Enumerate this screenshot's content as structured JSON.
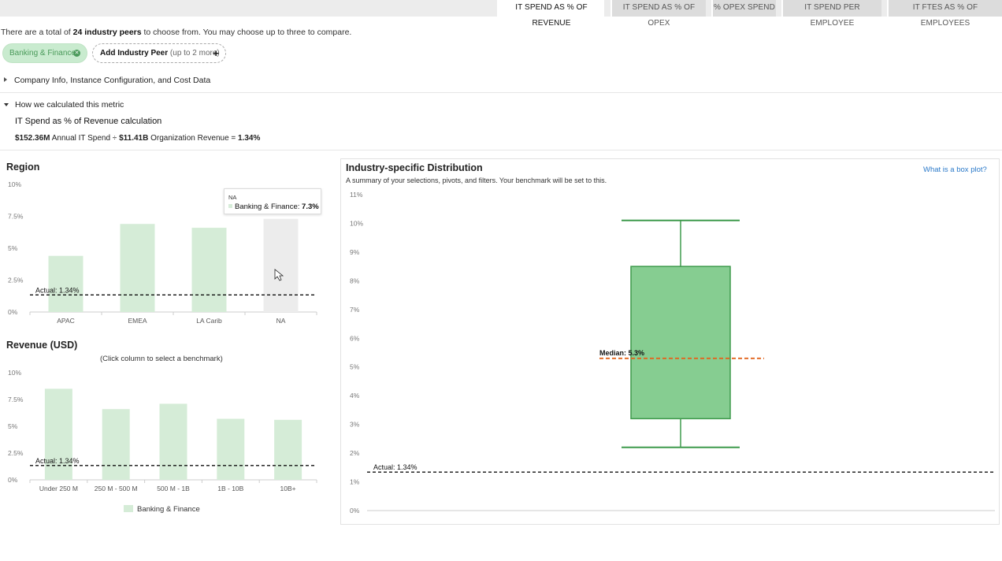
{
  "tabs": [
    {
      "label": "IT SPEND AS % OF REVENUE",
      "active": true
    },
    {
      "label": "IT SPEND AS % OF OPEX",
      "active": false
    },
    {
      "label": "% OPEX SPEND",
      "active": false
    },
    {
      "label": "IT SPEND PER EMPLOYEE",
      "active": false
    },
    {
      "label": "IT FTES AS % OF EMPLOYEES",
      "active": false
    }
  ],
  "peers": {
    "intro_pre": "There are a total of ",
    "intro_count": "24 industry peers",
    "intro_post": " to choose from. You may choose up to three to compare.",
    "selected_pill": "Banking & Finance",
    "add_label": "Add Industry Peer",
    "add_hint": "(up to 2 more)"
  },
  "sections": {
    "company_info": "Company Info, Instance Configuration, and Cost Data",
    "how_calculated": "How we calculated this metric"
  },
  "calculation": {
    "title": "IT Spend as % of Revenue calculation",
    "spend": "$152.36M",
    "spend_label": " Annual IT Spend ÷ ",
    "revenue": "$11.41B",
    "revenue_label": " Organization Revenue = ",
    "result": "1.34%"
  },
  "colors": {
    "bar": "#d5ecd7",
    "bar_hover": "#ececec",
    "box_fill": "#86cd91",
    "box_stroke": "#3e9a4c",
    "median": "#e2641d",
    "actual_line": "#111111"
  },
  "chart_data": [
    {
      "type": "bar",
      "title": "Region",
      "categories": [
        "APAC",
        "EMEA",
        "LA Carib",
        "NA"
      ],
      "values": [
        4.4,
        6.9,
        6.6,
        7.3
      ],
      "yticks": [
        "0%",
        "2.5%",
        "5%",
        "7.5%",
        "10%"
      ],
      "ylim": [
        0,
        10
      ],
      "reference": {
        "label": "Actual: 1.34%",
        "value": 1.34
      },
      "hovered": "NA",
      "tooltip": {
        "category": "NA",
        "series": "Banking & Finance: ",
        "value": "7.3%"
      }
    },
    {
      "type": "bar",
      "title": "Revenue (USD)",
      "subtitle": "(Click column to select a benchmark)",
      "categories": [
        "Under 250 M",
        "250 M - 500 M",
        "500 M - 1B",
        "1B - 10B",
        "10B+"
      ],
      "values": [
        8.5,
        6.6,
        7.1,
        5.7,
        5.6
      ],
      "yticks": [
        "0%",
        "2.5%",
        "5%",
        "7.5%",
        "10%"
      ],
      "ylim": [
        0,
        10
      ],
      "reference": {
        "label": "Actual: 1.34%",
        "value": 1.34
      },
      "legend": "Banking & Finance"
    },
    {
      "type": "box",
      "title": "Industry-specific Distribution",
      "subtitle": "A summary of your selections, pivots, and filters. Your benchmark will be set to this.",
      "help_link": "What is a box plot?",
      "yticks": [
        "0%",
        "1%",
        "2%",
        "3%",
        "4%",
        "5%",
        "6%",
        "7%",
        "8%",
        "9%",
        "10%",
        "11%"
      ],
      "ylim": [
        0,
        11
      ],
      "stats": {
        "min": 2.2,
        "q1": 3.2,
        "median": 5.3,
        "q3": 8.5,
        "max": 10.1
      },
      "median_label": "Median: 5.3%",
      "reference": {
        "label": "Actual: 1.34%",
        "value": 1.34
      }
    }
  ]
}
